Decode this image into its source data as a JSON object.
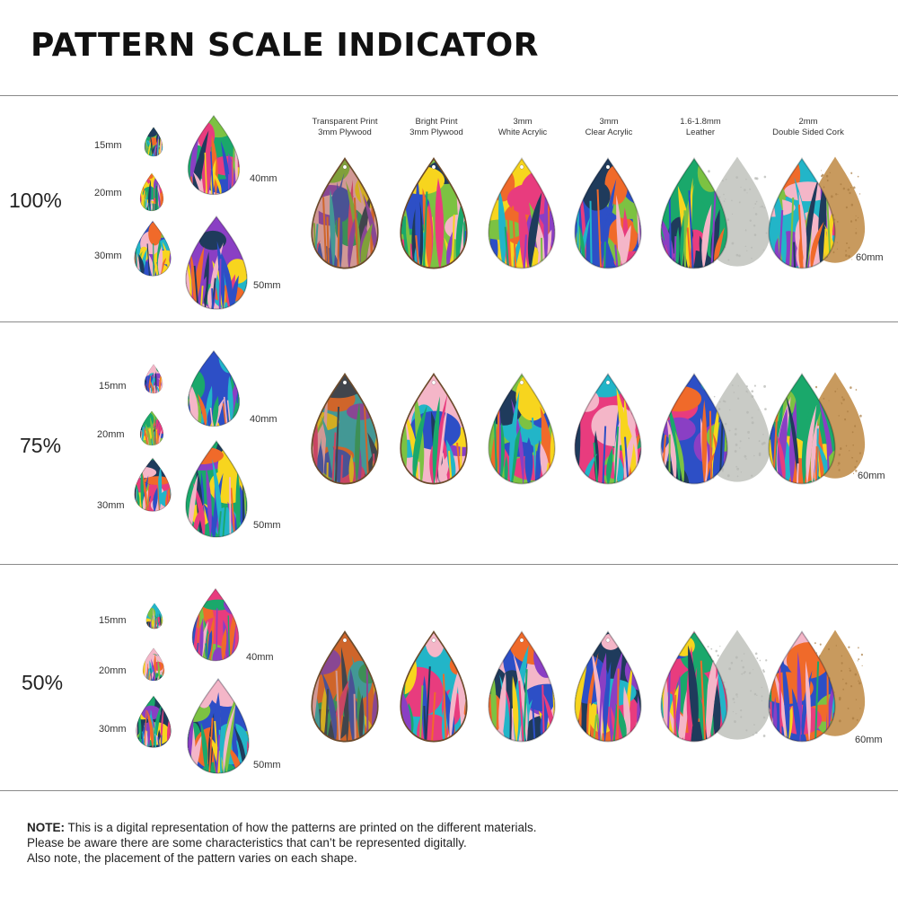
{
  "title": "PATTERN SCALE INDICATOR",
  "material_headers": [
    {
      "line1": "Transparent Print",
      "line2": "3mm Plywood"
    },
    {
      "line1": "Bright Print",
      "line2": "3mm Plywood"
    },
    {
      "line1": "3mm",
      "line2": "White Acrylic"
    },
    {
      "line1": "3mm",
      "line2": "Clear Acrylic"
    },
    {
      "line1": "1.6-1.8mm",
      "line2": "Leather"
    },
    {
      "line1": "2mm",
      "line2": "Double Sided Cork"
    }
  ],
  "sections": [
    {
      "scale": "100%",
      "sizes": {
        "s15": "15mm",
        "s20": "20mm",
        "s30": "30mm",
        "s40": "40mm",
        "s50": "50mm",
        "s60": "60mm"
      }
    },
    {
      "scale": "75%",
      "sizes": {
        "s15": "15mm",
        "s20": "20mm",
        "s30": "30mm",
        "s40": "40mm",
        "s50": "50mm",
        "s60": "60mm"
      }
    },
    {
      "scale": "50%",
      "sizes": {
        "s15": "15mm",
        "s20": "20mm",
        "s30": "30mm",
        "s40": "40mm",
        "s50": "50mm",
        "s60": "60mm"
      }
    }
  ],
  "note": {
    "label": "NOTE:",
    "line1": "This is a digital representation of how the patterns are printed on the different materials.",
    "line2": "Please be aware there are some characteristics that can’t be represented digitally.",
    "line3": "Also note, the placement of the pattern varies on each shape."
  },
  "colors": {
    "text": "#222222",
    "divider": "#8a8a8a",
    "leather_back": "#c9cbc6",
    "cork_back": "#c89a5e",
    "wood_edge": "#6b4a2b",
    "palette": [
      "#1aa86b",
      "#f06a2a",
      "#2d4fc6",
      "#f7d51e",
      "#e83c7e",
      "#7cc242",
      "#1f3b5c",
      "#f4b6c8",
      "#8a3fc4",
      "#22b5c8"
    ]
  }
}
